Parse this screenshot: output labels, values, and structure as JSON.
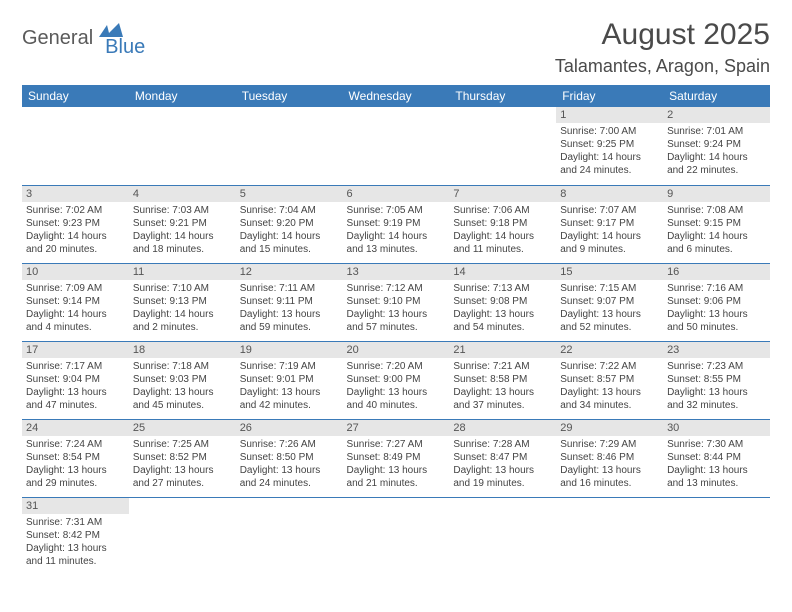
{
  "logo": {
    "word1": "General",
    "word2": "Blue"
  },
  "title": "August 2025",
  "subtitle": "Talamantes, Aragon, Spain",
  "columns": [
    "Sunday",
    "Monday",
    "Tuesday",
    "Wednesday",
    "Thursday",
    "Friday",
    "Saturday"
  ],
  "colors": {
    "header_bg": "#3a7ab8",
    "header_text": "#ffffff",
    "daynum_bg": "#e6e6e6",
    "border": "#3a7ab8",
    "logo_gray": "#5a5a5a",
    "logo_blue": "#3a7ab8"
  },
  "weeks": [
    [
      null,
      null,
      null,
      null,
      null,
      {
        "n": "1",
        "sr": "Sunrise: 7:00 AM",
        "ss": "Sunset: 9:25 PM",
        "d1": "Daylight: 14 hours",
        "d2": "and 24 minutes."
      },
      {
        "n": "2",
        "sr": "Sunrise: 7:01 AM",
        "ss": "Sunset: 9:24 PM",
        "d1": "Daylight: 14 hours",
        "d2": "and 22 minutes."
      }
    ],
    [
      {
        "n": "3",
        "sr": "Sunrise: 7:02 AM",
        "ss": "Sunset: 9:23 PM",
        "d1": "Daylight: 14 hours",
        "d2": "and 20 minutes."
      },
      {
        "n": "4",
        "sr": "Sunrise: 7:03 AM",
        "ss": "Sunset: 9:21 PM",
        "d1": "Daylight: 14 hours",
        "d2": "and 18 minutes."
      },
      {
        "n": "5",
        "sr": "Sunrise: 7:04 AM",
        "ss": "Sunset: 9:20 PM",
        "d1": "Daylight: 14 hours",
        "d2": "and 15 minutes."
      },
      {
        "n": "6",
        "sr": "Sunrise: 7:05 AM",
        "ss": "Sunset: 9:19 PM",
        "d1": "Daylight: 14 hours",
        "d2": "and 13 minutes."
      },
      {
        "n": "7",
        "sr": "Sunrise: 7:06 AM",
        "ss": "Sunset: 9:18 PM",
        "d1": "Daylight: 14 hours",
        "d2": "and 11 minutes."
      },
      {
        "n": "8",
        "sr": "Sunrise: 7:07 AM",
        "ss": "Sunset: 9:17 PM",
        "d1": "Daylight: 14 hours",
        "d2": "and 9 minutes."
      },
      {
        "n": "9",
        "sr": "Sunrise: 7:08 AM",
        "ss": "Sunset: 9:15 PM",
        "d1": "Daylight: 14 hours",
        "d2": "and 6 minutes."
      }
    ],
    [
      {
        "n": "10",
        "sr": "Sunrise: 7:09 AM",
        "ss": "Sunset: 9:14 PM",
        "d1": "Daylight: 14 hours",
        "d2": "and 4 minutes."
      },
      {
        "n": "11",
        "sr": "Sunrise: 7:10 AM",
        "ss": "Sunset: 9:13 PM",
        "d1": "Daylight: 14 hours",
        "d2": "and 2 minutes."
      },
      {
        "n": "12",
        "sr": "Sunrise: 7:11 AM",
        "ss": "Sunset: 9:11 PM",
        "d1": "Daylight: 13 hours",
        "d2": "and 59 minutes."
      },
      {
        "n": "13",
        "sr": "Sunrise: 7:12 AM",
        "ss": "Sunset: 9:10 PM",
        "d1": "Daylight: 13 hours",
        "d2": "and 57 minutes."
      },
      {
        "n": "14",
        "sr": "Sunrise: 7:13 AM",
        "ss": "Sunset: 9:08 PM",
        "d1": "Daylight: 13 hours",
        "d2": "and 54 minutes."
      },
      {
        "n": "15",
        "sr": "Sunrise: 7:15 AM",
        "ss": "Sunset: 9:07 PM",
        "d1": "Daylight: 13 hours",
        "d2": "and 52 minutes."
      },
      {
        "n": "16",
        "sr": "Sunrise: 7:16 AM",
        "ss": "Sunset: 9:06 PM",
        "d1": "Daylight: 13 hours",
        "d2": "and 50 minutes."
      }
    ],
    [
      {
        "n": "17",
        "sr": "Sunrise: 7:17 AM",
        "ss": "Sunset: 9:04 PM",
        "d1": "Daylight: 13 hours",
        "d2": "and 47 minutes."
      },
      {
        "n": "18",
        "sr": "Sunrise: 7:18 AM",
        "ss": "Sunset: 9:03 PM",
        "d1": "Daylight: 13 hours",
        "d2": "and 45 minutes."
      },
      {
        "n": "19",
        "sr": "Sunrise: 7:19 AM",
        "ss": "Sunset: 9:01 PM",
        "d1": "Daylight: 13 hours",
        "d2": "and 42 minutes."
      },
      {
        "n": "20",
        "sr": "Sunrise: 7:20 AM",
        "ss": "Sunset: 9:00 PM",
        "d1": "Daylight: 13 hours",
        "d2": "and 40 minutes."
      },
      {
        "n": "21",
        "sr": "Sunrise: 7:21 AM",
        "ss": "Sunset: 8:58 PM",
        "d1": "Daylight: 13 hours",
        "d2": "and 37 minutes."
      },
      {
        "n": "22",
        "sr": "Sunrise: 7:22 AM",
        "ss": "Sunset: 8:57 PM",
        "d1": "Daylight: 13 hours",
        "d2": "and 34 minutes."
      },
      {
        "n": "23",
        "sr": "Sunrise: 7:23 AM",
        "ss": "Sunset: 8:55 PM",
        "d1": "Daylight: 13 hours",
        "d2": "and 32 minutes."
      }
    ],
    [
      {
        "n": "24",
        "sr": "Sunrise: 7:24 AM",
        "ss": "Sunset: 8:54 PM",
        "d1": "Daylight: 13 hours",
        "d2": "and 29 minutes."
      },
      {
        "n": "25",
        "sr": "Sunrise: 7:25 AM",
        "ss": "Sunset: 8:52 PM",
        "d1": "Daylight: 13 hours",
        "d2": "and 27 minutes."
      },
      {
        "n": "26",
        "sr": "Sunrise: 7:26 AM",
        "ss": "Sunset: 8:50 PM",
        "d1": "Daylight: 13 hours",
        "d2": "and 24 minutes."
      },
      {
        "n": "27",
        "sr": "Sunrise: 7:27 AM",
        "ss": "Sunset: 8:49 PM",
        "d1": "Daylight: 13 hours",
        "d2": "and 21 minutes."
      },
      {
        "n": "28",
        "sr": "Sunrise: 7:28 AM",
        "ss": "Sunset: 8:47 PM",
        "d1": "Daylight: 13 hours",
        "d2": "and 19 minutes."
      },
      {
        "n": "29",
        "sr": "Sunrise: 7:29 AM",
        "ss": "Sunset: 8:46 PM",
        "d1": "Daylight: 13 hours",
        "d2": "and 16 minutes."
      },
      {
        "n": "30",
        "sr": "Sunrise: 7:30 AM",
        "ss": "Sunset: 8:44 PM",
        "d1": "Daylight: 13 hours",
        "d2": "and 13 minutes."
      }
    ],
    [
      {
        "n": "31",
        "sr": "Sunrise: 7:31 AM",
        "ss": "Sunset: 8:42 PM",
        "d1": "Daylight: 13 hours",
        "d2": "and 11 minutes."
      },
      null,
      null,
      null,
      null,
      null,
      null
    ]
  ]
}
